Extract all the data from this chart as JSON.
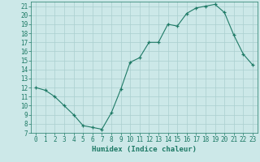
{
  "xlabel": "Humidex (Indice chaleur)",
  "x": [
    0,
    1,
    2,
    3,
    4,
    5,
    6,
    7,
    8,
    9,
    10,
    11,
    12,
    13,
    14,
    15,
    16,
    17,
    18,
    19,
    20,
    21,
    22,
    23
  ],
  "y": [
    12,
    11.7,
    11.0,
    10.0,
    9.0,
    7.8,
    7.6,
    7.4,
    9.2,
    11.8,
    14.8,
    15.3,
    17.0,
    17.0,
    19.0,
    18.8,
    20.2,
    20.8,
    21.0,
    21.2,
    20.3,
    17.8,
    15.7,
    14.5
  ],
  "line_color": "#1e7a66",
  "bg_color": "#cce8e8",
  "grid_color": "#aacfcf",
  "text_color": "#1e7a66",
  "xlim": [
    -0.5,
    23.5
  ],
  "ylim": [
    7,
    21.5
  ],
  "yticks": [
    7,
    8,
    9,
    10,
    11,
    12,
    13,
    14,
    15,
    16,
    17,
    18,
    19,
    20,
    21
  ],
  "xticks": [
    0,
    1,
    2,
    3,
    4,
    5,
    6,
    7,
    8,
    9,
    10,
    11,
    12,
    13,
    14,
    15,
    16,
    17,
    18,
    19,
    20,
    21,
    22,
    23
  ],
  "fontsize_xlabel": 6.5,
  "fontsize_ticks": 5.5
}
